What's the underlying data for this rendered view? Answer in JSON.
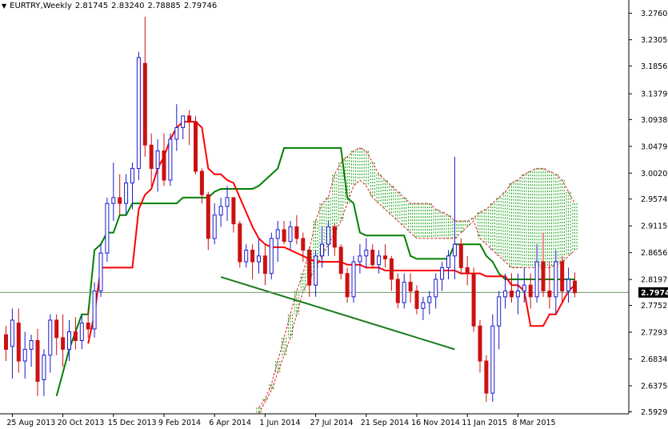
{
  "header": {
    "symbol": "EURTRY,Weekly",
    "open": "2.81745",
    "high": "2.83240",
    "low": "2.78885",
    "close": "2.79746",
    "menu_icon": "triangle-down-icon"
  },
  "colors": {
    "bull": "#1a1acc",
    "bear": "#cc1111",
    "tenkan": "#ff0000",
    "kijun": "#008000",
    "cloud_bull": "#10a010",
    "cloud_bear": "#dd2222",
    "trendline": "#1a7a1a",
    "current_price_line": "#6e9a6e",
    "axis": "#000000"
  },
  "chart_data": {
    "type": "candlestick",
    "title": "EURTRY,Weekly",
    "ylim": [
      2.5895,
      3.2945
    ],
    "ytick_labels": [
      "3.27600",
      "3.23050",
      "3.18565",
      "3.13790",
      "3.09380",
      "3.04790",
      "3.00200",
      "2.95745",
      "2.91155",
      "2.86565",
      "2.81975",
      "2.77525",
      "2.72930",
      "2.68340",
      "2.63750",
      "2.59295"
    ],
    "xtick_labels": [
      "25 Aug 2013",
      "20 Oct 2013",
      "15 Dec 2013",
      "9 Feb 2014",
      "6 Apr 2014",
      "1 Jun 2014",
      "27 Jul 2014",
      "21 Sep 2014",
      "16 Nov 2014",
      "11 Jan 2015",
      "8 Mar 2015"
    ],
    "xtick_index": [
      1,
      9,
      17,
      25,
      33,
      41,
      49,
      57,
      65,
      73,
      81
    ],
    "current_price": "2.79746",
    "candles": [
      [
        2.725,
        2.74,
        2.68,
        2.7
      ],
      [
        2.705,
        2.77,
        2.65,
        2.75
      ],
      [
        2.745,
        2.77,
        2.66,
        2.68
      ],
      [
        2.68,
        2.73,
        2.65,
        2.7
      ],
      [
        2.7,
        2.725,
        2.67,
        2.715
      ],
      [
        2.715,
        2.735,
        2.62,
        2.645
      ],
      [
        2.648,
        2.7,
        2.62,
        2.69
      ],
      [
        2.69,
        2.76,
        2.66,
        2.75
      ],
      [
        2.75,
        2.76,
        2.69,
        2.72
      ],
      [
        2.72,
        2.76,
        2.67,
        2.7
      ],
      [
        2.7,
        2.75,
        2.68,
        2.73
      ],
      [
        2.73,
        2.755,
        2.7,
        2.715
      ],
      [
        2.715,
        2.76,
        2.7,
        2.745
      ],
      [
        2.745,
        2.77,
        2.72,
        2.735
      ],
      [
        2.735,
        2.815,
        2.72,
        2.8
      ],
      [
        2.8,
        2.88,
        2.79,
        2.865
      ],
      [
        2.865,
        2.96,
        2.85,
        2.95
      ],
      [
        2.95,
        3.02,
        2.92,
        2.96
      ],
      [
        2.96,
        3.0,
        2.93,
        2.95
      ],
      [
        2.95,
        3.0,
        2.93,
        2.985
      ],
      [
        2.985,
        3.02,
        2.94,
        3.01
      ],
      [
        3.01,
        3.21,
        2.99,
        3.2
      ],
      [
        3.19,
        3.27,
        3.03,
        3.05
      ],
      [
        3.05,
        3.07,
        2.98,
        3.01
      ],
      [
        3.01,
        3.06,
        2.97,
        3.04
      ],
      [
        3.04,
        3.07,
        2.98,
        2.99
      ],
      [
        2.99,
        3.07,
        2.98,
        3.06
      ],
      [
        3.06,
        3.12,
        3.04,
        3.08
      ],
      [
        3.08,
        3.1,
        3.06,
        3.1
      ],
      [
        3.1,
        3.11,
        3.05,
        3.09
      ],
      [
        3.09,
        3.1,
        3.0,
        3.005
      ],
      [
        3.005,
        3.01,
        2.95,
        2.965
      ],
      [
        2.965,
        2.97,
        2.87,
        2.89
      ],
      [
        2.89,
        2.95,
        2.88,
        2.93
      ],
      [
        2.93,
        2.96,
        2.91,
        2.945
      ],
      [
        2.945,
        2.98,
        2.92,
        2.96
      ],
      [
        2.96,
        2.96,
        2.9,
        2.915
      ],
      [
        2.915,
        2.92,
        2.84,
        2.85
      ],
      [
        2.85,
        2.88,
        2.84,
        2.87
      ],
      [
        2.87,
        2.88,
        2.82,
        2.85
      ],
      [
        2.85,
        2.89,
        2.83,
        2.86
      ],
      [
        2.86,
        2.88,
        2.81,
        2.83
      ],
      [
        2.83,
        2.9,
        2.82,
        2.89
      ],
      [
        2.89,
        2.92,
        2.85,
        2.905
      ],
      [
        2.905,
        2.92,
        2.88,
        2.885
      ],
      [
        2.885,
        2.92,
        2.87,
        2.91
      ],
      [
        2.91,
        2.93,
        2.88,
        2.89
      ],
      [
        2.89,
        2.9,
        2.85,
        2.87
      ],
      [
        2.87,
        2.875,
        2.79,
        2.81
      ],
      [
        2.81,
        2.87,
        2.79,
        2.86
      ],
      [
        2.86,
        2.91,
        2.84,
        2.88
      ],
      [
        2.88,
        2.92,
        2.86,
        2.91
      ],
      [
        2.91,
        2.915,
        2.86,
        2.875
      ],
      [
        2.875,
        2.88,
        2.82,
        2.83
      ],
      [
        2.83,
        2.84,
        2.78,
        2.79
      ],
      [
        2.79,
        2.86,
        2.78,
        2.85
      ],
      [
        2.85,
        2.88,
        2.83,
        2.86
      ],
      [
        2.86,
        2.89,
        2.84,
        2.87
      ],
      [
        2.87,
        2.88,
        2.84,
        2.845
      ],
      [
        2.845,
        2.87,
        2.83,
        2.86
      ],
      [
        2.86,
        2.88,
        2.84,
        2.855
      ],
      [
        2.855,
        2.86,
        2.8,
        2.82
      ],
      [
        2.82,
        2.83,
        2.77,
        2.78
      ],
      [
        2.78,
        2.83,
        2.77,
        2.815
      ],
      [
        2.815,
        2.83,
        2.78,
        2.8
      ],
      [
        2.8,
        2.81,
        2.76,
        2.77
      ],
      [
        2.77,
        2.79,
        2.75,
        2.78
      ],
      [
        2.78,
        2.8,
        2.76,
        2.79
      ],
      [
        2.79,
        2.83,
        2.77,
        2.82
      ],
      [
        2.82,
        2.85,
        2.8,
        2.84
      ],
      [
        2.84,
        2.87,
        2.82,
        2.86
      ],
      [
        2.86,
        3.03,
        2.82,
        2.88
      ],
      [
        2.88,
        2.89,
        2.83,
        2.84
      ],
      [
        2.84,
        2.86,
        2.81,
        2.83
      ],
      [
        2.83,
        2.84,
        2.73,
        2.74
      ],
      [
        2.74,
        2.75,
        2.66,
        2.68
      ],
      [
        2.68,
        2.69,
        2.61,
        2.625
      ],
      [
        2.625,
        2.76,
        2.61,
        2.74
      ],
      [
        2.74,
        2.8,
        2.7,
        2.79
      ],
      [
        2.79,
        2.83,
        2.77,
        2.8
      ],
      [
        2.8,
        2.83,
        2.78,
        2.79
      ],
      [
        2.79,
        2.83,
        2.76,
        2.8
      ],
      [
        2.8,
        2.84,
        2.78,
        2.81
      ],
      [
        2.81,
        2.83,
        2.77,
        2.79
      ],
      [
        2.79,
        2.88,
        2.78,
        2.85
      ],
      [
        2.85,
        2.9,
        2.79,
        2.8
      ],
      [
        2.8,
        2.85,
        2.77,
        2.79
      ],
      [
        2.79,
        2.87,
        2.76,
        2.85
      ],
      [
        2.85,
        2.86,
        2.78,
        2.8
      ],
      [
        2.8,
        2.84,
        2.78,
        2.82
      ],
      [
        2.817,
        2.832,
        2.789,
        2.797
      ]
    ],
    "tenkan": [
      [
        13,
        2.71
      ],
      [
        14,
        2.76
      ],
      [
        15,
        2.84
      ],
      [
        16,
        2.84
      ],
      [
        17,
        2.84
      ],
      [
        18,
        2.84
      ],
      [
        19,
        2.84
      ],
      [
        20,
        2.84
      ],
      [
        21,
        2.94
      ],
      [
        22,
        2.965
      ],
      [
        23,
        2.975
      ],
      [
        24,
        3.01
      ],
      [
        25,
        3.03
      ],
      [
        26,
        3.06
      ],
      [
        27,
        3.08
      ],
      [
        28,
        3.09
      ],
      [
        29,
        3.09
      ],
      [
        30,
        3.09
      ],
      [
        31,
        3.08
      ],
      [
        32,
        3.01
      ],
      [
        33,
        3.0
      ],
      [
        34,
        3.0
      ],
      [
        35,
        2.99
      ],
      [
        36,
        2.985
      ],
      [
        37,
        2.96
      ],
      [
        38,
        2.935
      ],
      [
        39,
        2.91
      ],
      [
        40,
        2.89
      ],
      [
        41,
        2.88
      ],
      [
        42,
        2.875
      ],
      [
        43,
        2.875
      ],
      [
        44,
        2.875
      ],
      [
        45,
        2.87
      ],
      [
        46,
        2.865
      ],
      [
        47,
        2.86
      ],
      [
        48,
        2.855
      ],
      [
        49,
        2.85
      ],
      [
        50,
        2.85
      ],
      [
        51,
        2.85
      ],
      [
        52,
        2.85
      ],
      [
        53,
        2.85
      ],
      [
        54,
        2.845
      ],
      [
        55,
        2.845
      ],
      [
        56,
        2.845
      ],
      [
        57,
        2.84
      ],
      [
        58,
        2.84
      ],
      [
        59,
        2.84
      ],
      [
        60,
        2.835
      ],
      [
        61,
        2.835
      ],
      [
        62,
        2.835
      ],
      [
        63,
        2.835
      ],
      [
        64,
        2.835
      ],
      [
        65,
        2.835
      ],
      [
        66,
        2.835
      ],
      [
        67,
        2.835
      ],
      [
        68,
        2.835
      ],
      [
        69,
        2.835
      ],
      [
        70,
        2.835
      ],
      [
        71,
        2.835
      ],
      [
        72,
        2.83
      ],
      [
        73,
        2.83
      ],
      [
        74,
        2.83
      ],
      [
        75,
        2.83
      ],
      [
        76,
        2.825
      ],
      [
        77,
        2.825
      ],
      [
        78,
        2.825
      ],
      [
        79,
        2.825
      ],
      [
        80,
        2.81
      ],
      [
        81,
        2.81
      ],
      [
        82,
        2.8
      ],
      [
        83,
        2.74
      ],
      [
        84,
        2.74
      ],
      [
        85,
        2.74
      ],
      [
        86,
        2.76
      ],
      [
        87,
        2.76
      ],
      [
        88,
        2.78
      ],
      [
        89,
        2.8
      ],
      [
        90,
        2.81
      ]
    ],
    "kijun": [
      [
        8,
        2.62
      ],
      [
        9,
        2.66
      ],
      [
        10,
        2.7
      ],
      [
        11,
        2.73
      ],
      [
        12,
        2.76
      ],
      [
        13,
        2.76
      ],
      [
        14,
        2.87
      ],
      [
        15,
        2.88
      ],
      [
        16,
        2.9
      ],
      [
        17,
        2.9
      ],
      [
        18,
        2.93
      ],
      [
        19,
        2.93
      ],
      [
        20,
        2.95
      ],
      [
        21,
        2.95
      ],
      [
        22,
        2.95
      ],
      [
        23,
        2.95
      ],
      [
        24,
        2.95
      ],
      [
        25,
        2.95
      ],
      [
        26,
        2.95
      ],
      [
        27,
        2.95
      ],
      [
        28,
        2.96
      ],
      [
        29,
        2.96
      ],
      [
        30,
        2.96
      ],
      [
        31,
        2.96
      ],
      [
        32,
        2.96
      ],
      [
        33,
        2.97
      ],
      [
        34,
        2.975
      ],
      [
        35,
        2.975
      ],
      [
        36,
        2.975
      ],
      [
        37,
        2.975
      ],
      [
        38,
        2.975
      ],
      [
        39,
        2.975
      ],
      [
        40,
        2.98
      ],
      [
        41,
        2.99
      ],
      [
        42,
        3.0
      ],
      [
        43,
        3.01
      ],
      [
        44,
        3.045
      ],
      [
        45,
        3.045
      ],
      [
        46,
        3.045
      ],
      [
        47,
        3.045
      ],
      [
        48,
        3.045
      ],
      [
        49,
        3.045
      ],
      [
        50,
        3.045
      ],
      [
        51,
        3.045
      ],
      [
        52,
        3.045
      ],
      [
        53,
        3.045
      ],
      [
        54,
        2.96
      ],
      [
        55,
        2.95
      ],
      [
        56,
        2.9
      ],
      [
        57,
        2.895
      ],
      [
        58,
        2.895
      ],
      [
        59,
        2.895
      ],
      [
        60,
        2.895
      ],
      [
        61,
        2.895
      ],
      [
        62,
        2.895
      ],
      [
        63,
        2.895
      ],
      [
        64,
        2.86
      ],
      [
        65,
        2.855
      ],
      [
        66,
        2.855
      ],
      [
        67,
        2.855
      ],
      [
        68,
        2.855
      ],
      [
        69,
        2.855
      ],
      [
        70,
        2.855
      ],
      [
        71,
        2.88
      ],
      [
        72,
        2.88
      ],
      [
        73,
        2.88
      ],
      [
        74,
        2.88
      ],
      [
        75,
        2.88
      ],
      [
        76,
        2.86
      ],
      [
        77,
        2.85
      ],
      [
        78,
        2.83
      ],
      [
        79,
        2.82
      ],
      [
        80,
        2.82
      ],
      [
        81,
        2.82
      ],
      [
        82,
        2.82
      ],
      [
        83,
        2.82
      ],
      [
        84,
        2.82
      ],
      [
        85,
        2.82
      ],
      [
        86,
        2.82
      ],
      [
        87,
        2.82
      ],
      [
        88,
        2.82
      ],
      [
        89,
        2.82
      ],
      [
        90,
        2.82
      ]
    ],
    "cloud": [
      [
        40,
        2.59,
        2.6
      ],
      [
        41,
        2.61,
        2.615
      ],
      [
        42,
        2.63,
        2.64
      ],
      [
        43,
        2.66,
        2.68
      ],
      [
        44,
        2.69,
        2.72
      ],
      [
        45,
        2.72,
        2.76
      ],
      [
        46,
        2.76,
        2.8
      ],
      [
        47,
        2.8,
        2.83
      ],
      [
        48,
        2.82,
        2.87
      ],
      [
        49,
        2.84,
        2.92
      ],
      [
        50,
        2.86,
        2.95
      ],
      [
        51,
        2.88,
        2.96
      ],
      [
        52,
        2.9,
        3.0
      ],
      [
        53,
        2.92,
        3.02
      ],
      [
        54,
        2.95,
        3.03
      ],
      [
        55,
        2.98,
        3.04
      ],
      [
        56,
        2.99,
        3.045
      ],
      [
        57,
        2.98,
        3.04
      ],
      [
        58,
        2.96,
        3.02
      ],
      [
        59,
        2.95,
        3.0
      ],
      [
        60,
        2.94,
        2.99
      ],
      [
        61,
        2.93,
        2.98
      ],
      [
        62,
        2.92,
        2.97
      ],
      [
        63,
        2.91,
        2.96
      ],
      [
        64,
        2.9,
        2.95
      ],
      [
        65,
        2.89,
        2.95
      ],
      [
        66,
        2.89,
        2.95
      ],
      [
        67,
        2.89,
        2.95
      ],
      [
        68,
        2.89,
        2.94
      ],
      [
        69,
        2.89,
        2.935
      ],
      [
        70,
        2.89,
        2.93
      ],
      [
        71,
        2.89,
        2.92
      ],
      [
        72,
        2.9,
        2.92
      ],
      [
        73,
        2.91,
        2.92
      ],
      [
        74,
        2.92,
        2.925
      ],
      [
        75,
        2.89,
        2.935
      ],
      [
        76,
        2.88,
        2.94
      ],
      [
        77,
        2.87,
        2.95
      ],
      [
        78,
        2.86,
        2.96
      ],
      [
        79,
        2.85,
        2.97
      ],
      [
        80,
        2.84,
        2.985
      ],
      [
        81,
        2.84,
        2.99
      ],
      [
        82,
        2.84,
        3.0
      ],
      [
        83,
        2.84,
        3.005
      ],
      [
        84,
        2.84,
        3.01
      ],
      [
        85,
        2.84,
        3.01
      ],
      [
        86,
        2.84,
        3.005
      ],
      [
        87,
        2.845,
        3.0
      ],
      [
        88,
        2.85,
        2.99
      ],
      [
        89,
        2.86,
        2.97
      ],
      [
        90,
        2.87,
        2.95
      ]
    ],
    "trendline": [
      [
        34,
        2.824
      ],
      [
        71,
        2.7
      ]
    ]
  }
}
